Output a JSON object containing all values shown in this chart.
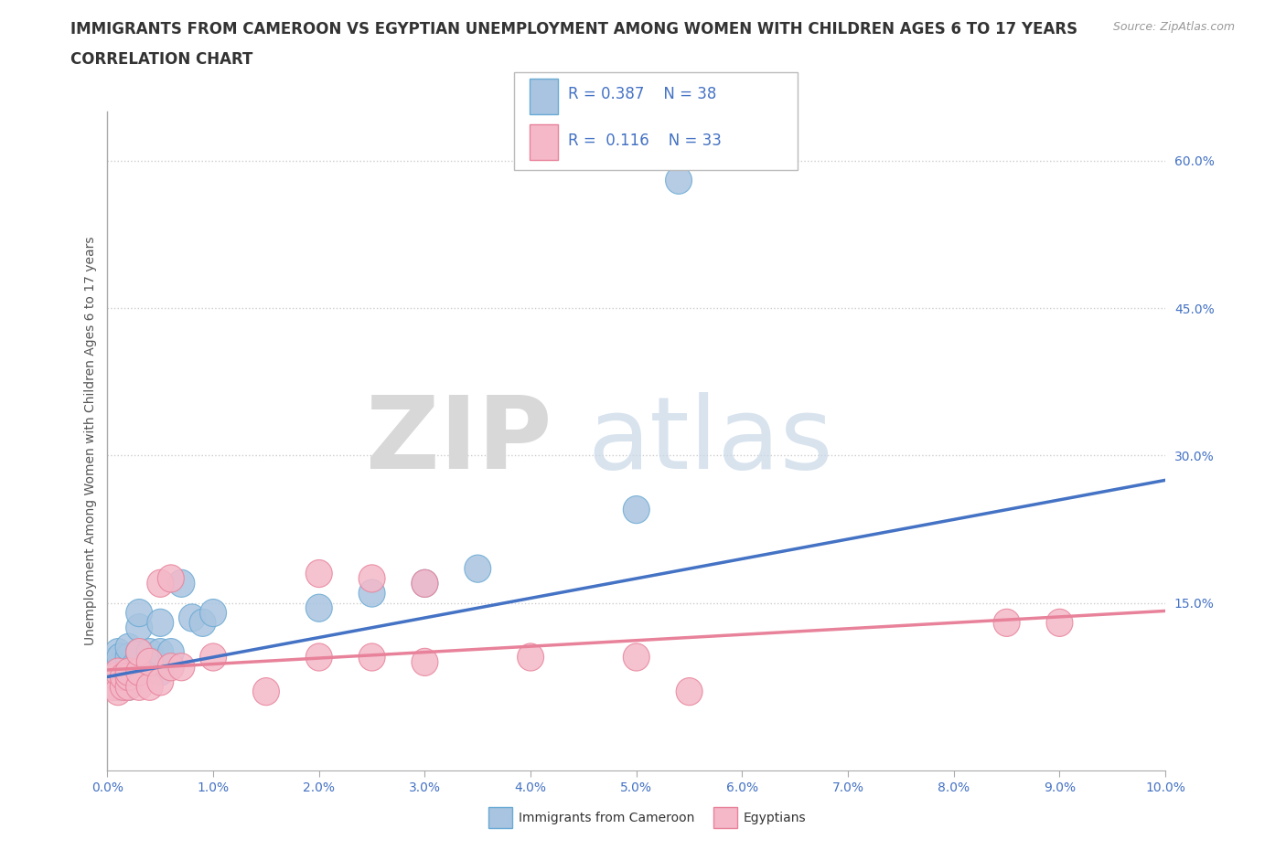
{
  "title_line1": "IMMIGRANTS FROM CAMEROON VS EGYPTIAN UNEMPLOYMENT AMONG WOMEN WITH CHILDREN AGES 6 TO 17 YEARS",
  "title_line2": "CORRELATION CHART",
  "source_text": "Source: ZipAtlas.com",
  "ylabel": "Unemployment Among Women with Children Ages 6 to 17 years",
  "xlim": [
    0.0,
    0.1
  ],
  "ylim": [
    -0.02,
    0.65
  ],
  "xticks": [
    0.0,
    0.01,
    0.02,
    0.03,
    0.04,
    0.05,
    0.06,
    0.07,
    0.08,
    0.09,
    0.1
  ],
  "xticklabels": [
    "0.0%",
    "1.0%",
    "2.0%",
    "3.0%",
    "4.0%",
    "5.0%",
    "6.0%",
    "7.0%",
    "8.0%",
    "9.0%",
    "10.0%"
  ],
  "yticks_right": [
    0.15,
    0.3,
    0.45,
    0.6
  ],
  "ytick_labels_right": [
    "15.0%",
    "30.0%",
    "45.0%",
    "60.0%"
  ],
  "grid_color": "#cccccc",
  "background_color": "#ffffff",
  "series": [
    {
      "name": "Immigrants from Cameroon",
      "color": "#a8c4e0",
      "edge_color": "#6aaad4",
      "R": 0.387,
      "N": 38,
      "trend_color": "#4472c4",
      "x": [
        0.0005,
        0.0005,
        0.0008,
        0.001,
        0.001,
        0.001,
        0.001,
        0.0012,
        0.0015,
        0.0015,
        0.002,
        0.002,
        0.002,
        0.002,
        0.002,
        0.0025,
        0.003,
        0.003,
        0.003,
        0.003,
        0.003,
        0.004,
        0.004,
        0.0045,
        0.005,
        0.005,
        0.005,
        0.006,
        0.007,
        0.008,
        0.009,
        0.01,
        0.02,
        0.025,
        0.03,
        0.035,
        0.05,
        0.054
      ],
      "y": [
        0.07,
        0.09,
        0.08,
        0.065,
        0.075,
        0.085,
        0.1,
        0.095,
        0.065,
        0.075,
        0.065,
        0.075,
        0.085,
        0.095,
        0.105,
        0.085,
        0.08,
        0.09,
        0.1,
        0.125,
        0.14,
        0.09,
        0.1,
        0.09,
        0.08,
        0.1,
        0.13,
        0.1,
        0.17,
        0.135,
        0.13,
        0.14,
        0.145,
        0.16,
        0.17,
        0.185,
        0.245,
        0.58
      ],
      "trend_x": [
        0.0,
        0.1
      ],
      "trend_y": [
        0.075,
        0.275
      ]
    },
    {
      "name": "Egyptians",
      "color": "#f4b8c8",
      "edge_color": "#e8829a",
      "R": 0.116,
      "N": 33,
      "trend_color": "#e8829a",
      "x": [
        0.0003,
        0.0005,
        0.0008,
        0.001,
        0.001,
        0.0015,
        0.0015,
        0.002,
        0.002,
        0.002,
        0.003,
        0.003,
        0.003,
        0.004,
        0.004,
        0.005,
        0.005,
        0.006,
        0.006,
        0.007,
        0.01,
        0.015,
        0.02,
        0.02,
        0.025,
        0.025,
        0.03,
        0.03,
        0.04,
        0.05,
        0.055,
        0.085,
        0.09
      ],
      "y": [
        0.07,
        0.065,
        0.075,
        0.06,
        0.08,
        0.065,
        0.075,
        0.065,
        0.075,
        0.08,
        0.065,
        0.08,
        0.1,
        0.065,
        0.09,
        0.07,
        0.17,
        0.085,
        0.175,
        0.085,
        0.095,
        0.06,
        0.095,
        0.18,
        0.095,
        0.175,
        0.09,
        0.17,
        0.095,
        0.095,
        0.06,
        0.13,
        0.13
      ],
      "trend_x": [
        0.0,
        0.1
      ],
      "trend_y": [
        0.082,
        0.142
      ]
    }
  ],
  "legend_R_color": "#4472c4",
  "legend_N_color": "#00b050",
  "title_fontsize": 12,
  "axis_label_fontsize": 10,
  "tick_fontsize": 10,
  "legend_fontsize": 12
}
